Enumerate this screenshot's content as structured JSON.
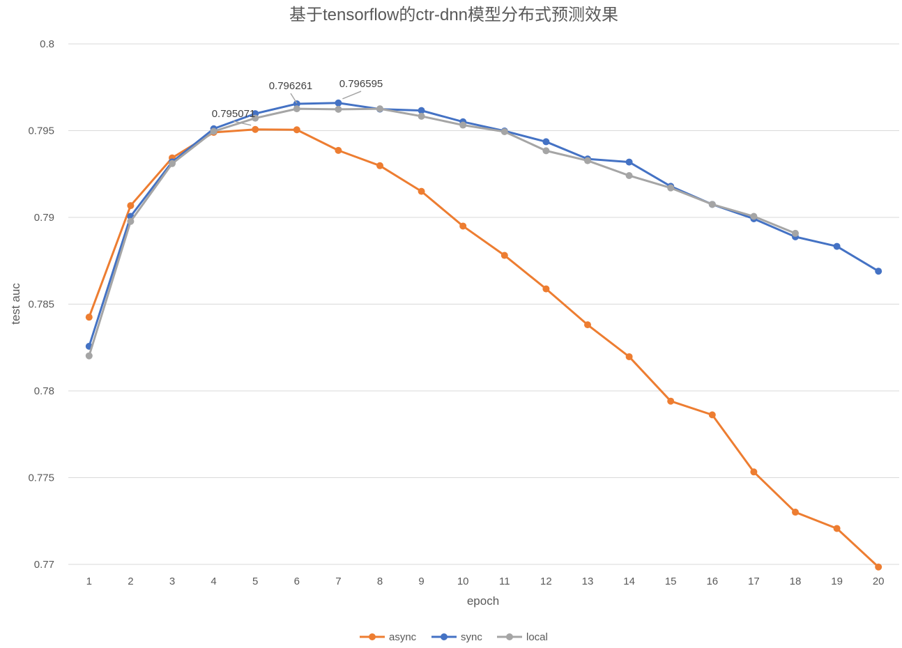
{
  "chart_data": {
    "type": "line",
    "title": "基于tensorflow的ctr-dnn模型分布式预测效果",
    "xlabel": "epoch",
    "ylabel": "test auc",
    "categories": [
      "1",
      "2",
      "3",
      "4",
      "5",
      "6",
      "7",
      "8",
      "9",
      "10",
      "11",
      "12",
      "13",
      "14",
      "15",
      "16",
      "17",
      "18",
      "19",
      "20"
    ],
    "ylim": [
      0.77,
      0.8
    ],
    "yticks": [
      "0.77",
      "0.775",
      "0.78",
      "0.785",
      "0.79",
      "0.795",
      "0.8"
    ],
    "grid": true,
    "legend_position": "bottom",
    "series": [
      {
        "name": "async",
        "color": "#ED7D31",
        "values": [
          0.78425,
          0.79068,
          0.79343,
          0.7949,
          0.795071,
          0.79505,
          0.79386,
          0.79298,
          0.7915,
          0.7895,
          0.78781,
          0.78588,
          0.78381,
          0.78197,
          0.77941,
          0.77862,
          0.77533,
          0.77301,
          0.77207,
          0.76985
        ]
      },
      {
        "name": "sync",
        "color": "#4472C4",
        "values": [
          0.78257,
          0.79006,
          0.7932,
          0.79511,
          0.79598,
          0.796548,
          0.796595,
          0.79624,
          0.79616,
          0.79551,
          0.79498,
          0.79436,
          0.79337,
          0.79319,
          0.79179,
          0.79075,
          0.78992,
          0.78888,
          0.78833,
          0.7869
        ]
      },
      {
        "name": "local",
        "color": "#A5A5A5",
        "values": [
          0.78202,
          0.78977,
          0.7931,
          0.79496,
          0.79572,
          0.796261,
          0.79623,
          0.79626,
          0.79583,
          0.79532,
          0.79494,
          0.79384,
          0.79327,
          0.79241,
          0.7917,
          0.79075,
          0.79006,
          0.78908,
          null,
          null
        ]
      }
    ],
    "annotations": [
      {
        "text": "0.795071",
        "series": "async",
        "index": 4
      },
      {
        "text": "0.796261",
        "series": "local",
        "index": 5
      },
      {
        "text": "0.796595",
        "series": "sync",
        "index": 6
      }
    ]
  }
}
